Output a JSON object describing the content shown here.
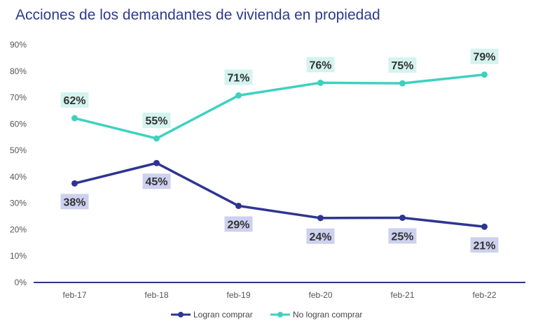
{
  "chart_data": {
    "type": "line",
    "title": "Acciones de los demandantes de vivienda en propiedad",
    "categories": [
      "feb-17",
      "feb-18",
      "feb-19",
      "feb-20",
      "feb-21",
      "feb-22"
    ],
    "ylim": [
      0,
      90
    ],
    "yticks": [
      0,
      10,
      20,
      30,
      40,
      50,
      60,
      70,
      80,
      90
    ],
    "ytick_labels": [
      "0%",
      "10%",
      "20%",
      "30%",
      "40%",
      "50%",
      "60%",
      "70%",
      "80%",
      "90%"
    ],
    "xlabel": "",
    "ylabel": "",
    "grid": false,
    "legend_position": "bottom",
    "series": [
      {
        "name": "Logran comprar",
        "color": "#2e3591",
        "label_bg": "#cdd0ee",
        "label_side": "below",
        "values": [
          37.5,
          45.2,
          29.0,
          24.4,
          24.5,
          21.1
        ],
        "labels": [
          "38%",
          "45%",
          "29%",
          "24%",
          "25%",
          "21%"
        ]
      },
      {
        "name": "No logran comprar",
        "color": "#3ed1c0",
        "label_bg": "#d4f3ef",
        "label_side": "above",
        "values": [
          62.2,
          54.5,
          70.8,
          75.6,
          75.4,
          78.7
        ],
        "labels": [
          "62%",
          "55%",
          "71%",
          "76%",
          "75%",
          "79%"
        ]
      }
    ]
  }
}
